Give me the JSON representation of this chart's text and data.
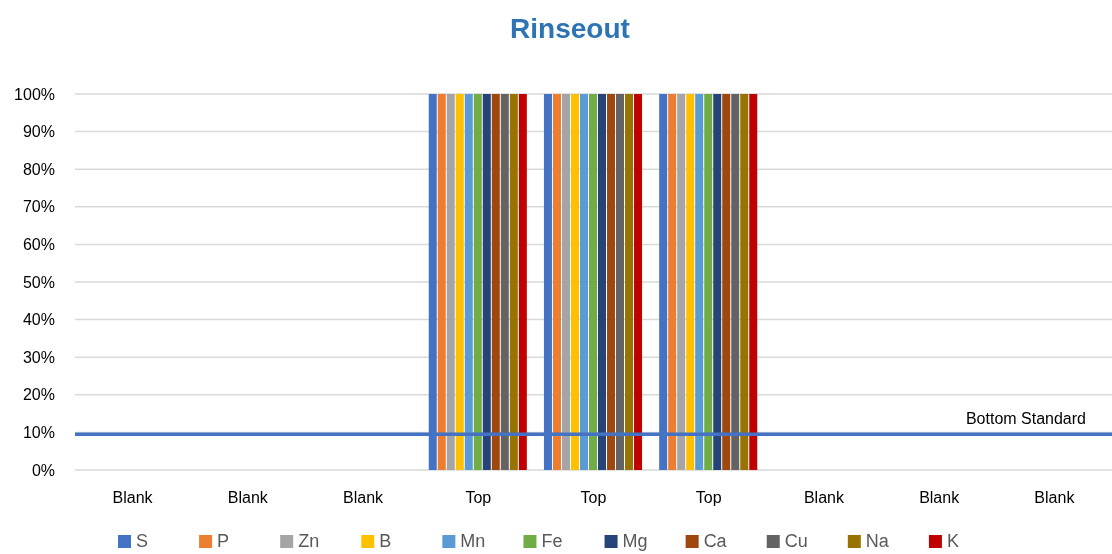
{
  "chart_data": {
    "type": "bar",
    "title": "Rinseout",
    "categories": [
      "Blank",
      "Blank",
      "Blank",
      "Top",
      "Top",
      "Top",
      "Blank",
      "Blank",
      "Blank"
    ],
    "series": [
      {
        "name": "S",
        "color": "#4472c4",
        "values": [
          0,
          0,
          0,
          100,
          100,
          100,
          0,
          0,
          0
        ]
      },
      {
        "name": "P",
        "color": "#ed7d31",
        "values": [
          0,
          0,
          0,
          100,
          100,
          100,
          0,
          0,
          0
        ]
      },
      {
        "name": "Zn",
        "color": "#a5a5a5",
        "values": [
          0,
          0,
          0,
          100,
          100,
          100,
          0,
          0,
          0
        ]
      },
      {
        "name": "B",
        "color": "#ffc000",
        "values": [
          0,
          0,
          0,
          100,
          100,
          100,
          0,
          0,
          0
        ]
      },
      {
        "name": "Mn",
        "color": "#5b9bd5",
        "values": [
          0,
          0,
          0,
          100,
          100,
          100,
          0,
          0,
          0
        ]
      },
      {
        "name": "Fe",
        "color": "#70ad47",
        "values": [
          0,
          0,
          0,
          100,
          100,
          100,
          0,
          0,
          0
        ]
      },
      {
        "name": "Mg",
        "color": "#264478",
        "values": [
          0,
          0,
          0,
          100,
          100,
          100,
          0,
          0,
          0
        ]
      },
      {
        "name": "Ca",
        "color": "#9e480e",
        "values": [
          0,
          0,
          0,
          100,
          100,
          100,
          0,
          0,
          0
        ]
      },
      {
        "name": "Cu",
        "color": "#636363",
        "values": [
          0,
          0,
          0,
          100,
          100,
          100,
          0,
          0,
          0
        ]
      },
      {
        "name": "Na",
        "color": "#997300",
        "values": [
          0,
          0,
          0,
          100,
          100,
          100,
          0,
          0,
          0
        ]
      },
      {
        "name": "K",
        "color": "#c00000",
        "values": [
          0,
          0,
          0,
          100,
          100,
          100,
          0,
          0,
          0
        ]
      }
    ],
    "ylim": [
      0,
      100
    ],
    "yticks": [
      {
        "value": 0,
        "label": "0%"
      },
      {
        "value": 10,
        "label": "10%"
      },
      {
        "value": 20,
        "label": "20%"
      },
      {
        "value": 30,
        "label": "30%"
      },
      {
        "value": 40,
        "label": "40%"
      },
      {
        "value": 50,
        "label": "50%"
      },
      {
        "value": 60,
        "label": "60%"
      },
      {
        "value": 70,
        "label": "70%"
      },
      {
        "value": 80,
        "label": "80%"
      },
      {
        "value": 90,
        "label": "90%"
      },
      {
        "value": 100,
        "label": "100%"
      }
    ],
    "grid": "y",
    "legend": "bottom",
    "ref_lines": [
      {
        "axis": "y",
        "value": 9.5,
        "label": "Bottom Standard",
        "color": "#4472c4"
      }
    ]
  }
}
